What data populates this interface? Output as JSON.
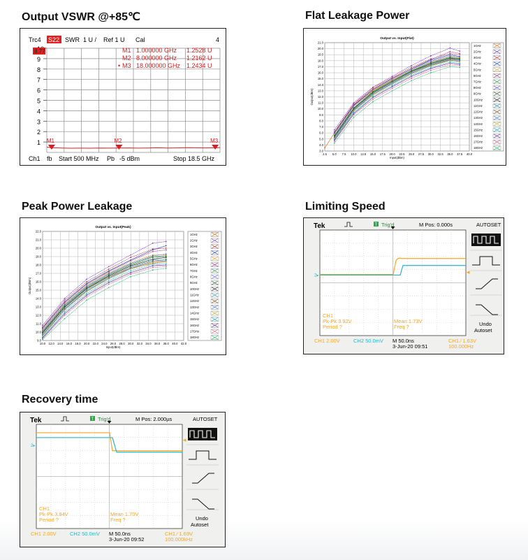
{
  "titles": {
    "vswr": "Output VSWR @+85℃",
    "flat": "Flat Leakage Power",
    "peak": "Peak Power Leakage",
    "limiting": "Limiting Speed",
    "recovery": "Recovery time"
  },
  "vswr": {
    "header": {
      "trc": "Trc4",
      "param": "S22",
      "format": "SWR",
      "scale": "1 U /",
      "ref": "Ref 1 U",
      "cal": "Cal",
      "channel_no": "4"
    },
    "ylabels": [
      "10",
      "9",
      "8",
      "7",
      "6",
      "5",
      "4",
      "3",
      "2",
      "1"
    ],
    "ref_flag": "8.77",
    "markers": [
      {
        "name": "M1",
        "freq": "1.000000 GHz",
        "value": "1.2528 U",
        "prefix": ""
      },
      {
        "name": "M2",
        "freq": "8.000000 GHz",
        "value": "1.2162 U",
        "prefix": ""
      },
      {
        "name": "M3",
        "freq": "18.000000 GHz",
        "value": "1.2434 U",
        "prefix": "•"
      }
    ],
    "footer": {
      "ch": "Ch1",
      "fb": "fb",
      "start": "Start  500 MHz",
      "pb": "Pb",
      "power": "-5 dBm",
      "stop": "Stop  18.5 GHz"
    }
  },
  "chart_data": [
    {
      "type": "line",
      "title": "Output VSWR @+85℃",
      "xlabel": "",
      "ylabel": "SWR",
      "xlim": [
        0.5,
        18.5
      ],
      "ylim": [
        0,
        10
      ],
      "series": [
        {
          "name": "S22",
          "x": [
            0.5,
            1,
            2,
            3,
            4,
            5,
            6,
            7,
            8,
            9,
            10,
            11,
            12,
            13,
            14,
            15,
            16,
            17,
            18,
            18.5
          ],
          "y": [
            1.3,
            1.25,
            1.22,
            1.2,
            1.21,
            1.2,
            1.22,
            1.21,
            1.22,
            1.23,
            1.21,
            1.22,
            1.24,
            1.22,
            1.23,
            1.25,
            1.24,
            1.23,
            1.24,
            1.26
          ]
        }
      ]
    },
    {
      "type": "line",
      "title": "Output vs. Input(Flat)",
      "xlabel": "Input(dBm)",
      "ylabel": "Output(dBm)",
      "xlim": [
        2.5,
        40
      ],
      "ylim": [
        3,
        21
      ],
      "xticks": [
        "2.5",
        "5.0",
        "7.5",
        "10.0",
        "12.5",
        "15.0",
        "17.5",
        "20.0",
        "22.5",
        "25.0",
        "27.5",
        "30.0",
        "32.5",
        "35.0",
        "37.5",
        "40.0"
      ],
      "yticks": [
        "3.0",
        "4.0",
        "5.0",
        "6.0",
        "7.0",
        "8.0",
        "9.0",
        "10.0",
        "11.0",
        "12.0",
        "13.0",
        "14.0",
        "15.0",
        "16.0",
        "17.0",
        "18.0",
        "19.0",
        "20.0",
        "21.0"
      ],
      "series": [
        {
          "name": "1GHz",
          "color": "#e07b20",
          "x": [
            2.5,
            5,
            10,
            15,
            20,
            25,
            30,
            35,
            37.5
          ],
          "y": [
            3.5,
            6.0,
            10.5,
            13.0,
            14.8,
            16.3,
            17.3,
            18.2,
            18.4
          ]
        },
        {
          "name": "2GHz",
          "color": "#7f3fbf",
          "x": [
            5,
            10,
            15,
            20,
            25,
            30,
            35,
            37.5
          ],
          "y": [
            6.5,
            11.0,
            13.6,
            15.4,
            17.2,
            18.8,
            20.1,
            19.6
          ]
        },
        {
          "name": "3GHz",
          "color": "#c04040",
          "x": [
            5,
            10,
            15,
            20,
            25,
            30,
            35,
            37.5
          ],
          "y": [
            6.2,
            10.8,
            13.5,
            15.2,
            16.9,
            18.3,
            19.2,
            19.0
          ]
        },
        {
          "name": "4GHz",
          "color": "#3050c0",
          "x": [
            5,
            10,
            15,
            20,
            25,
            30,
            35,
            37.5
          ],
          "y": [
            6.0,
            10.6,
            13.2,
            15.0,
            16.6,
            18.1,
            19.0,
            18.7
          ]
        },
        {
          "name": "5GHz",
          "color": "#e0a020",
          "x": [
            5,
            10,
            15,
            20,
            25,
            30,
            35,
            37.5
          ],
          "y": [
            5.8,
            10.4,
            13.1,
            14.8,
            16.4,
            17.8,
            18.7,
            18.5
          ]
        },
        {
          "name": "6GHz",
          "color": "#a04080",
          "x": [
            5,
            10,
            15,
            20,
            25,
            30,
            35,
            37.5
          ],
          "y": [
            6.1,
            10.7,
            13.3,
            15.1,
            16.7,
            18.2,
            19.5,
            19.2
          ]
        },
        {
          "name": "7GHz",
          "color": "#40a060",
          "x": [
            5,
            10,
            15,
            20,
            25,
            30,
            35,
            37.5
          ],
          "y": [
            5.5,
            10.1,
            12.8,
            14.6,
            16.3,
            17.6,
            18.5,
            18.3
          ]
        },
        {
          "name": "8GHz",
          "color": "#6060e0",
          "x": [
            5,
            10,
            15,
            20,
            25,
            30,
            35,
            37.5
          ],
          "y": [
            5.9,
            10.5,
            13.2,
            15.0,
            16.6,
            17.9,
            18.8,
            18.6
          ]
        },
        {
          "name": "9GHz",
          "color": "#3a6a3a",
          "x": [
            5,
            10,
            15,
            20,
            25,
            30,
            35,
            37.5
          ],
          "y": [
            5.6,
            10.2,
            12.9,
            14.7,
            16.4,
            17.7,
            18.6,
            18.4
          ]
        },
        {
          "name": "10GHz",
          "color": "#303030",
          "x": [
            5,
            10,
            15,
            20,
            25,
            30,
            35,
            37.5
          ],
          "y": [
            5.4,
            10.0,
            12.7,
            14.5,
            16.2,
            17.5,
            18.4,
            18.2
          ]
        },
        {
          "name": "11GHz",
          "color": "#2a9aa0",
          "x": [
            5,
            10,
            15,
            20,
            25,
            30,
            35,
            37.5
          ],
          "y": [
            5.3,
            9.9,
            12.6,
            14.4,
            16.1,
            17.4,
            18.3,
            18.1
          ]
        },
        {
          "name": "12GHz",
          "color": "#8a5a2a",
          "x": [
            5,
            10,
            15,
            20,
            25,
            30,
            35,
            37.5
          ],
          "y": [
            5.2,
            9.8,
            12.5,
            14.3,
            16.0,
            17.3,
            18.2,
            18.0
          ]
        },
        {
          "name": "13GHz",
          "color": "#5080d0",
          "x": [
            5,
            10,
            15,
            20,
            25,
            30,
            35,
            37.5
          ],
          "y": [
            5.1,
            9.7,
            12.4,
            14.2,
            15.9,
            17.2,
            18.1,
            17.9
          ]
        },
        {
          "name": "14GHz",
          "color": "#b0b020",
          "x": [
            5,
            10,
            15,
            20,
            25,
            30,
            35,
            37.5
          ],
          "y": [
            5.0,
            9.6,
            12.3,
            14.1,
            15.8,
            17.1,
            18.0,
            17.8
          ]
        },
        {
          "name": "15GHz",
          "color": "#20b0d0",
          "x": [
            5,
            10,
            15,
            20,
            25,
            30,
            35,
            37.5
          ],
          "y": [
            4.9,
            9.4,
            12.1,
            13.9,
            15.6,
            16.9,
            17.8,
            17.6
          ]
        },
        {
          "name": "16GHz",
          "color": "#6a40a0",
          "x": [
            5,
            10,
            15,
            20,
            25,
            30,
            35,
            37.5
          ],
          "y": [
            4.8,
            9.2,
            11.9,
            13.7,
            15.4,
            16.7,
            17.6,
            17.4
          ]
        },
        {
          "name": "17GHz",
          "color": "#d06090",
          "x": [
            5,
            10,
            15,
            20,
            25,
            30,
            35,
            37.5
          ],
          "y": [
            4.6,
            9.0,
            11.6,
            13.4,
            15.1,
            16.4,
            17.3,
            17.2
          ]
        },
        {
          "name": "18GHz",
          "color": "#30c070",
          "x": [
            5,
            10,
            15,
            20,
            25,
            30,
            35,
            37.5
          ],
          "y": [
            4.3,
            8.6,
            11.2,
            13.0,
            14.7,
            16.0,
            17.0,
            16.9
          ]
        }
      ]
    },
    {
      "type": "line",
      "title": "Output vs. Input(Peak)",
      "xlabel": "Input(dBm)",
      "ylabel": "Output(dBm)",
      "xlim": [
        10,
        42
      ],
      "ylim": [
        9,
        22
      ],
      "xticks": [
        "10.0",
        "12.0",
        "14.0",
        "16.0",
        "18.0",
        "20.0",
        "22.0",
        "24.0",
        "26.0",
        "28.0",
        "30.0",
        "32.0",
        "34.0",
        "36.0",
        "38.0",
        "40.0",
        "42.0"
      ],
      "yticks": [
        "9.0",
        "10.0",
        "11.0",
        "12.0",
        "13.0",
        "14.0",
        "15.0",
        "16.0",
        "17.0",
        "18.0",
        "19.0",
        "20.0",
        "21.0",
        "22.0"
      ],
      "series": [
        {
          "name": "1GHz",
          "color": "#e07b20",
          "x": [
            10,
            15,
            20,
            25,
            30,
            35,
            38
          ],
          "y": [
            10.0,
            13.0,
            15.2,
            16.6,
            17.6,
            18.2,
            18.4
          ]
        },
        {
          "name": "2GHz",
          "color": "#7f3fbf",
          "x": [
            10,
            15,
            20,
            25,
            30,
            35,
            38
          ],
          "y": [
            10.8,
            14.0,
            16.3,
            17.8,
            19.2,
            20.6,
            20.8
          ]
        },
        {
          "name": "3GHz",
          "color": "#c04040",
          "x": [
            10,
            15,
            20,
            25,
            30,
            35,
            38
          ],
          "y": [
            10.6,
            13.8,
            16.0,
            17.5,
            18.9,
            19.9,
            20.0
          ]
        },
        {
          "name": "4GHz",
          "color": "#3050c0",
          "x": [
            10,
            15,
            20,
            25,
            30,
            35,
            38
          ],
          "y": [
            10.5,
            13.6,
            15.8,
            17.3,
            18.6,
            19.8,
            20.3
          ]
        },
        {
          "name": "5GHz",
          "color": "#e0a020",
          "x": [
            10,
            15,
            20,
            25,
            30,
            35,
            38
          ],
          "y": [
            10.3,
            13.4,
            15.6,
            17.1,
            18.3,
            19.2,
            19.2
          ]
        },
        {
          "name": "6GHz",
          "color": "#a04080",
          "x": [
            10,
            15,
            20,
            25,
            30,
            35,
            38
          ],
          "y": [
            10.4,
            13.5,
            15.7,
            17.2,
            18.5,
            19.6,
            19.8
          ]
        },
        {
          "name": "7GHz",
          "color": "#40a060",
          "x": [
            10,
            15,
            20,
            25,
            30,
            35,
            38
          ],
          "y": [
            10.1,
            13.2,
            15.4,
            16.9,
            18.1,
            19.0,
            19.1
          ]
        },
        {
          "name": "8GHz",
          "color": "#6060e0",
          "x": [
            10,
            15,
            20,
            25,
            30,
            35,
            38
          ],
          "y": [
            10.2,
            13.3,
            15.5,
            17.0,
            18.2,
            19.1,
            19.3
          ]
        },
        {
          "name": "9GHz",
          "color": "#3a6a3a",
          "x": [
            10,
            15,
            20,
            25,
            30,
            35,
            38
          ],
          "y": [
            10.0,
            13.1,
            15.3,
            16.8,
            18.0,
            18.9,
            19.0
          ]
        },
        {
          "name": "10GHz",
          "color": "#303030",
          "x": [
            10,
            15,
            20,
            25,
            30,
            35,
            38
          ],
          "y": [
            9.9,
            13.0,
            15.2,
            16.7,
            17.9,
            18.7,
            18.9
          ]
        },
        {
          "name": "11GHz",
          "color": "#2a9aa0",
          "x": [
            10,
            15,
            20,
            25,
            30,
            35,
            38
          ],
          "y": [
            9.8,
            12.9,
            15.1,
            16.6,
            17.8,
            18.6,
            18.7
          ]
        },
        {
          "name": "12GHz",
          "color": "#8a5a2a",
          "x": [
            10,
            15,
            20,
            25,
            30,
            35,
            38
          ],
          "y": [
            9.7,
            12.8,
            15.0,
            16.5,
            17.7,
            18.5,
            18.6
          ]
        },
        {
          "name": "13GHz",
          "color": "#5080d0",
          "x": [
            10,
            15,
            20,
            25,
            30,
            35,
            38
          ],
          "y": [
            9.6,
            12.7,
            14.9,
            16.4,
            17.6,
            18.4,
            18.5
          ]
        },
        {
          "name": "14GHz",
          "color": "#b0b020",
          "x": [
            10,
            15,
            20,
            25,
            30,
            35,
            38
          ],
          "y": [
            9.5,
            12.6,
            14.8,
            16.3,
            17.5,
            18.3,
            18.4
          ]
        },
        {
          "name": "15GHz",
          "color": "#20b0d0",
          "x": [
            10,
            15,
            20,
            25,
            30,
            35,
            38
          ],
          "y": [
            9.4,
            12.4,
            14.6,
            16.1,
            17.3,
            18.1,
            18.2
          ]
        },
        {
          "name": "16GHz",
          "color": "#6a40a0",
          "x": [
            10,
            15,
            20,
            25,
            30,
            35,
            38
          ],
          "y": [
            9.3,
            12.2,
            14.4,
            15.9,
            17.1,
            17.9,
            18.0
          ]
        },
        {
          "name": "17GHz",
          "color": "#d06090",
          "x": [
            10,
            15,
            20,
            25,
            30,
            35,
            38
          ],
          "y": [
            9.2,
            12.0,
            14.2,
            15.7,
            16.9,
            17.7,
            17.8
          ]
        },
        {
          "name": "18GHz",
          "color": "#30c070",
          "x": [
            10,
            15,
            20,
            25,
            30,
            35,
            38
          ],
          "y": [
            9.1,
            11.6,
            13.8,
            15.3,
            16.6,
            17.4,
            17.6
          ]
        }
      ]
    }
  ],
  "scopes": {
    "limiting": {
      "brand": "Tek",
      "trig": "Trig'd",
      "mpos": "M Pos: 0.000s",
      "autoset": "AUTOSET",
      "ch1_label": "CH1",
      "pkpk": "Pk-Pk 3.92V",
      "period": "Period ?",
      "mean": "Mean 1.73V",
      "freq": "Freq ?",
      "ch1_scale": "CH1  2.00V",
      "ch2_scale": "CH2  50.0mV",
      "m_scale": "M 50.0ns",
      "date": "3-Jun-20 09:51",
      "trig_level": "CH1  ⁄  1.63V",
      "trig_freq": "100.000Hz",
      "undo": "Undo",
      "undo2": "Autoset",
      "edge": "rising",
      "colors": {
        "ch1": "#f5a623",
        "ch2": "#26b5c8"
      }
    },
    "recovery": {
      "brand": "Tek",
      "trig": "Trig'd",
      "mpos": "M Pos: 2.000µs",
      "autoset": "AUTOSET",
      "ch1_label": "CH1",
      "pkpk": "Pk-Pk 3.84V",
      "period": "Period ?",
      "mean": "Mean 1.70V",
      "freq": "Freq ?",
      "ch1_scale": "CH1  2.00V",
      "ch2_scale": "CH2  50.0mV",
      "m_scale": "M 50.0ns",
      "date": "3-Jun-20 09:52",
      "trig_level": "CH1  ⁄  1.69V",
      "trig_freq": "100.000kHz",
      "undo": "Undo",
      "undo2": "Autoset",
      "edge": "falling",
      "colors": {
        "ch1": "#f5a623",
        "ch2": "#26b5c8"
      }
    }
  }
}
